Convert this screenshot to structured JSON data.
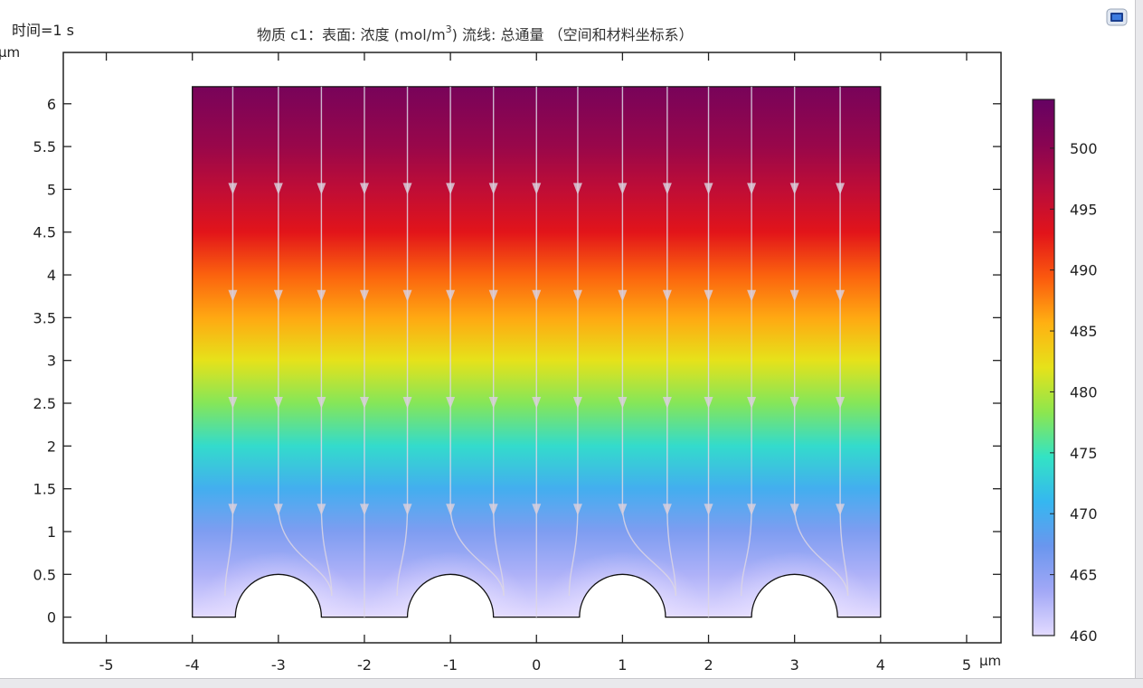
{
  "header": {
    "time_label": "时间=1 s",
    "title_main": "物质 c1：表面: 浓度 (mol/m",
    "title_sup": "3",
    "title_rest": ")  流线: 总通量  （空间和材料坐标系）"
  },
  "units": {
    "y_unit": "µm",
    "x_unit": "µm"
  },
  "icons": {
    "app_icon": "comsol-window-icon"
  },
  "chart_data": {
    "type": "heatmap",
    "x_range": [
      -5.5,
      5.4
    ],
    "y_range": [
      -0.3,
      6.6
    ],
    "x_ticks": [
      -5,
      -4,
      -3,
      -2,
      -1,
      0,
      1,
      2,
      3,
      4,
      5
    ],
    "x_tick_labels": [
      "-5",
      "-4",
      "-3",
      "-2",
      "-1",
      "0",
      "1",
      "2",
      "3",
      "4",
      "5"
    ],
    "y_ticks": [
      0,
      0.5,
      1,
      1.5,
      2,
      2.5,
      3,
      3.5,
      4,
      4.5,
      5,
      5.5,
      6
    ],
    "y_tick_labels": [
      "0",
      "0.5",
      "1",
      "1.5",
      "2",
      "2.5",
      "3",
      "3.5",
      "4",
      "4.5",
      "5",
      "5.5",
      "6"
    ],
    "domain": {
      "x_min": -4,
      "x_max": 4,
      "y_min": 0,
      "y_max": 6.2,
      "semicircle_centers": [
        -3,
        -1,
        1,
        3
      ],
      "semicircle_radius": 0.5
    },
    "concentration_profile": {
      "y": [
        0,
        0.5,
        1.0,
        1.5,
        2.0,
        2.5,
        3.0,
        3.5,
        4.0,
        4.5,
        5.0,
        5.5,
        6.2
      ],
      "value": [
        460,
        463,
        466,
        470,
        474,
        478,
        482,
        486,
        489,
        493,
        496,
        499,
        502
      ]
    },
    "streamlines_x": [
      -3.53,
      -3.0,
      -2.5,
      -2.0,
      -1.5,
      -1.0,
      -0.5,
      0.0,
      0.48,
      1.0,
      1.52,
      2.0,
      2.5,
      3.0,
      3.53
    ],
    "arrow_y": [
      5.0,
      3.75,
      2.5,
      1.25
    ],
    "colorbar": {
      "min": 460,
      "max": 504,
      "ticks": [
        460,
        465,
        470,
        475,
        480,
        485,
        490,
        495,
        500
      ],
      "tick_labels": [
        "460",
        "465",
        "470",
        "475",
        "480",
        "485",
        "490",
        "495",
        "500"
      ],
      "colormap": [
        "#e3dbff",
        "#a2a8f6",
        "#6a96ee",
        "#35b7f0",
        "#33e3c4",
        "#8de64e",
        "#e6e21a",
        "#ffb012",
        "#fb5a0e",
        "#e2141a",
        "#b70c3c",
        "#880452",
        "#650263"
      ]
    }
  }
}
